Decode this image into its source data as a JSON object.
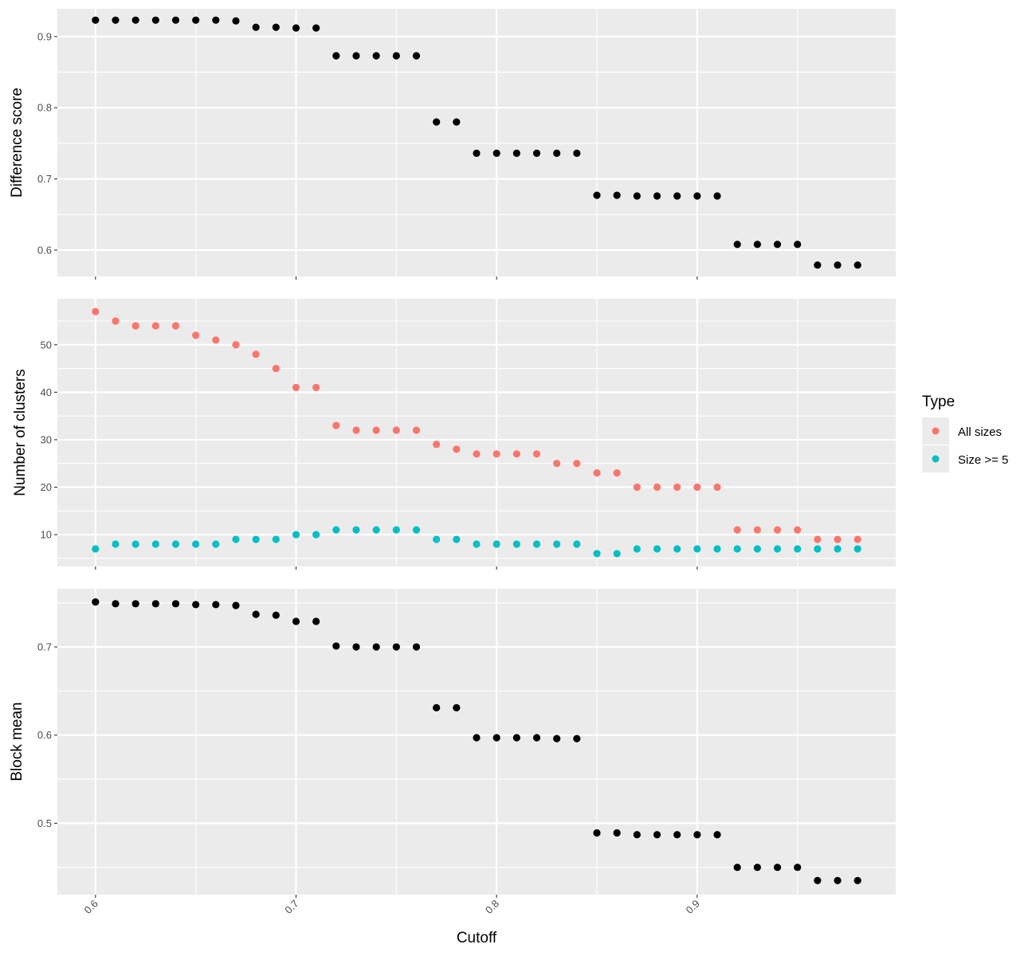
{
  "chart_data": [
    {
      "type": "scatter",
      "panel": "top",
      "xlabel": "Cutoff",
      "ylabel": "Difference score",
      "xlim": [
        0.581,
        0.999
      ],
      "ylim": [
        0.563,
        0.939
      ],
      "x_ticks": [
        0.6,
        0.7,
        0.8,
        0.9
      ],
      "y_ticks": [
        0.6,
        0.7,
        0.8,
        0.9
      ],
      "grid": true,
      "point_color": "#000000",
      "x": [
        0.6,
        0.61,
        0.62,
        0.63,
        0.64,
        0.65,
        0.66,
        0.67,
        0.68,
        0.69,
        0.7,
        0.71,
        0.72,
        0.73,
        0.74,
        0.75,
        0.76,
        0.77,
        0.78,
        0.79,
        0.8,
        0.81,
        0.82,
        0.83,
        0.84,
        0.85,
        0.86,
        0.87,
        0.88,
        0.89,
        0.9,
        0.91,
        0.92,
        0.93,
        0.94,
        0.95,
        0.96,
        0.97,
        0.98
      ],
      "values": [
        0.923,
        0.923,
        0.923,
        0.923,
        0.923,
        0.923,
        0.923,
        0.922,
        0.913,
        0.913,
        0.912,
        0.912,
        0.873,
        0.873,
        0.873,
        0.873,
        0.873,
        0.78,
        0.78,
        0.736,
        0.736,
        0.736,
        0.736,
        0.736,
        0.736,
        0.677,
        0.677,
        0.676,
        0.676,
        0.676,
        0.676,
        0.676,
        0.608,
        0.608,
        0.608,
        0.608,
        0.579,
        0.579,
        0.579
      ]
    },
    {
      "type": "scatter",
      "panel": "middle",
      "xlabel": "Cutoff",
      "ylabel": "Number of clusters",
      "xlim": [
        0.581,
        0.999
      ],
      "ylim": [
        3.3,
        59.7
      ],
      "x_ticks": [
        0.6,
        0.7,
        0.8,
        0.9
      ],
      "y_ticks": [
        10,
        20,
        30,
        40,
        50
      ],
      "grid": true,
      "legend": {
        "title": "Type",
        "placement": "right"
      },
      "x": [
        0.6,
        0.61,
        0.62,
        0.63,
        0.64,
        0.65,
        0.66,
        0.67,
        0.68,
        0.69,
        0.7,
        0.71,
        0.72,
        0.73,
        0.74,
        0.75,
        0.76,
        0.77,
        0.78,
        0.79,
        0.8,
        0.81,
        0.82,
        0.83,
        0.84,
        0.85,
        0.86,
        0.87,
        0.88,
        0.89,
        0.9,
        0.91,
        0.92,
        0.93,
        0.94,
        0.95,
        0.96,
        0.97,
        0.98
      ],
      "series": [
        {
          "name": "All sizes",
          "color": "#f8766d",
          "values": [
            57,
            55,
            54,
            54,
            54,
            52,
            51,
            50,
            48,
            45,
            41,
            41,
            33,
            32,
            32,
            32,
            32,
            29,
            28,
            27,
            27,
            27,
            27,
            25,
            25,
            23,
            23,
            20,
            20,
            20,
            20,
            20,
            11,
            11,
            11,
            11,
            9,
            9,
            9
          ]
        },
        {
          "name": "Size >= 5",
          "color": "#00bfc4",
          "values": [
            7,
            8,
            8,
            8,
            8,
            8,
            8,
            9,
            9,
            9,
            10,
            10,
            11,
            11,
            11,
            11,
            11,
            9,
            9,
            8,
            8,
            8,
            8,
            8,
            8,
            6,
            6,
            7,
            7,
            7,
            7,
            7,
            7,
            7,
            7,
            7,
            7,
            7,
            7
          ]
        }
      ]
    },
    {
      "type": "scatter",
      "panel": "bottom",
      "xlabel": "Cutoff",
      "ylabel": "Block mean",
      "xlim": [
        0.581,
        0.999
      ],
      "ylim": [
        0.419,
        0.766
      ],
      "x_ticks": [
        0.6,
        0.7,
        0.8,
        0.9
      ],
      "y_ticks": [
        0.5,
        0.6,
        0.7
      ],
      "grid": true,
      "point_color": "#000000",
      "x": [
        0.6,
        0.61,
        0.62,
        0.63,
        0.64,
        0.65,
        0.66,
        0.67,
        0.68,
        0.69,
        0.7,
        0.71,
        0.72,
        0.73,
        0.74,
        0.75,
        0.76,
        0.77,
        0.78,
        0.79,
        0.8,
        0.81,
        0.82,
        0.83,
        0.84,
        0.85,
        0.86,
        0.87,
        0.88,
        0.89,
        0.9,
        0.91,
        0.92,
        0.93,
        0.94,
        0.95,
        0.96,
        0.97,
        0.98
      ],
      "values": [
        0.751,
        0.749,
        0.749,
        0.749,
        0.749,
        0.748,
        0.748,
        0.747,
        0.737,
        0.736,
        0.729,
        0.729,
        0.701,
        0.7,
        0.7,
        0.7,
        0.7,
        0.631,
        0.631,
        0.597,
        0.597,
        0.597,
        0.597,
        0.596,
        0.596,
        0.489,
        0.489,
        0.487,
        0.487,
        0.487,
        0.487,
        0.487,
        0.45,
        0.45,
        0.45,
        0.45,
        0.435,
        0.435,
        0.435
      ]
    }
  ],
  "colors": {
    "panel_background": "#ebebeb",
    "grid": "#ffffff",
    "tick_text": "#4d4d4d",
    "tick_mark": "#333333"
  }
}
